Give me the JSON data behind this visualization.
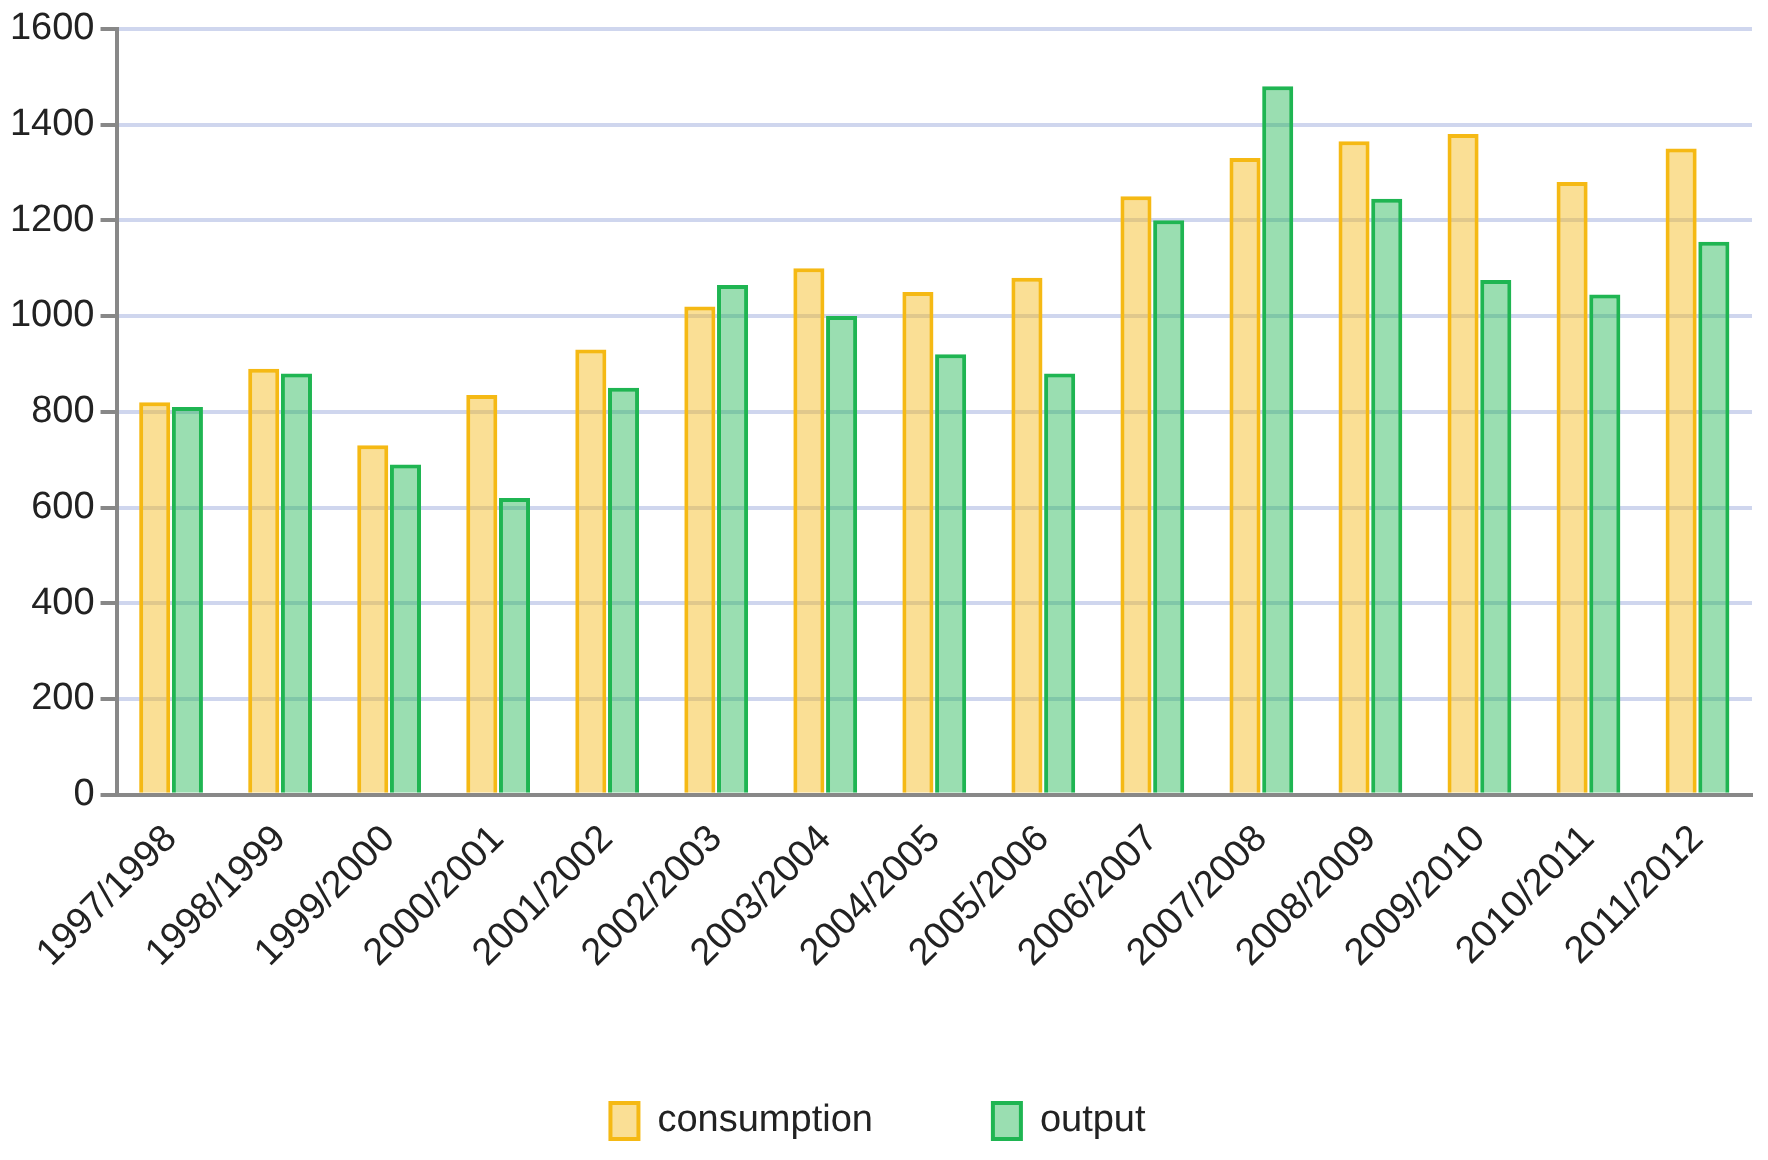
{
  "chart_data": {
    "type": "bar",
    "categories": [
      "1997/1998",
      "1998/1999",
      "1999/2000",
      "2000/2001",
      "2001/2002",
      "2002/2003",
      "2003/2004",
      "2004/2005",
      "2005/2006",
      "2006/2007",
      "2007/2008",
      "2008/2009",
      "2009/2010",
      "2010/2011",
      "2011/2012"
    ],
    "series": [
      {
        "name": "consumption",
        "color": "#f5b914",
        "values": [
          820,
          890,
          730,
          835,
          930,
          1020,
          1100,
          1050,
          1080,
          1250,
          1330,
          1365,
          1380,
          1280,
          1350
        ]
      },
      {
        "name": "output",
        "color": "#1fb552",
        "values": [
          810,
          880,
          690,
          620,
          850,
          1065,
          1000,
          920,
          880,
          1200,
          1480,
          1245,
          1075,
          1045,
          1155
        ]
      }
    ],
    "ylim": [
      0,
      1600
    ],
    "yticks": [
      0,
      200,
      400,
      600,
      800,
      1000,
      1200,
      1400,
      1600
    ],
    "grid": "y",
    "legend": "bottom"
  }
}
